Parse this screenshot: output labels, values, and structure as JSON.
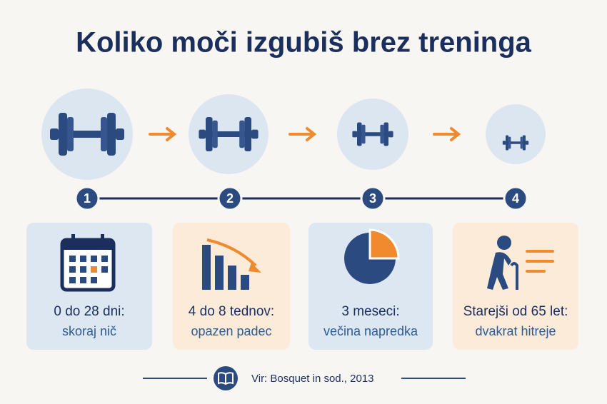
{
  "title": "Koliko moči izgubiš brez treninga",
  "steps": [
    {
      "number": "1",
      "heading": "0 do 28 dni:",
      "text": "skoraj nič"
    },
    {
      "number": "2",
      "heading": "4 do 8 tednov:",
      "text": "opazen padec"
    },
    {
      "number": "3",
      "heading": "3 meseci:",
      "text": "večina napredka"
    },
    {
      "number": "4",
      "heading": "Starejši od 65 let:",
      "text": "dvakrat hitreje"
    }
  ],
  "source": "Vir: Bosquet in sod., 2013"
}
